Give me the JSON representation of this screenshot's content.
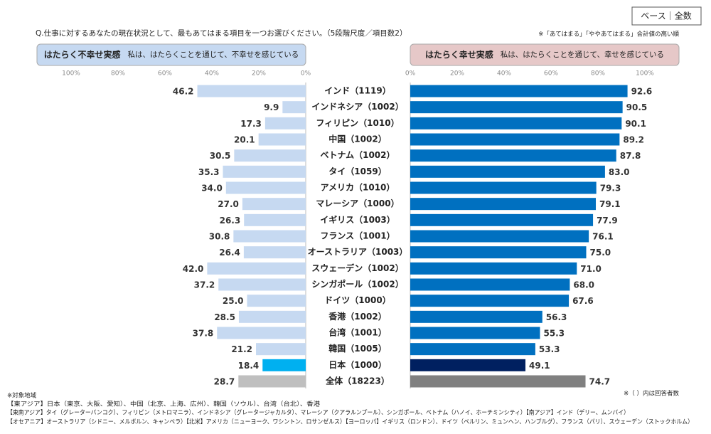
{
  "chart_data": {
    "type": "butterfly",
    "base_label": "ベース｜全数",
    "question": "Q.仕事に対するあなたの現在状況として、最もあてはまる項目を一つお選びください。（5段階尺度／項目数2）",
    "note": "※「あてはまる」「ややあてはまる」合計値の高い順",
    "categories": [
      "インド（1119）",
      "インドネシア（1002）",
      "フィリピン（1010）",
      "中国（1002）",
      "ベトナム（1002）",
      "タイ（1059）",
      "アメリカ（1010）",
      "マレーシア（1000）",
      "イギリス（1003）",
      "フランス（1001）",
      "オーストラリア（1003）",
      "スウェーデン（1002）",
      "シンガポール（1002）",
      "ドイツ（1000）",
      "香港（1002）",
      "台湾（1001）",
      "韓国（1005）",
      "日本（1000）",
      "全体（18223）"
    ],
    "series": [
      {
        "name": "はたらく不幸せ実感",
        "subtitle": "私は、はたらくことを通じて、不幸せを感じている",
        "header_color": "#c6d9f1",
        "color": "#c6d9f1",
        "colors": [
          "#c6d9f1",
          "#c6d9f1",
          "#c6d9f1",
          "#c6d9f1",
          "#c6d9f1",
          "#c6d9f1",
          "#c6d9f1",
          "#c6d9f1",
          "#c6d9f1",
          "#c6d9f1",
          "#c6d9f1",
          "#c6d9f1",
          "#c6d9f1",
          "#c6d9f1",
          "#c6d9f1",
          "#c6d9f1",
          "#c6d9f1",
          "#00b0f0",
          "#bfbfbf"
        ],
        "values": [
          46.2,
          9.9,
          17.3,
          20.1,
          30.5,
          35.3,
          34.0,
          27.0,
          26.3,
          30.8,
          26.4,
          42.0,
          37.2,
          25.0,
          28.5,
          37.8,
          21.2,
          18.4,
          28.7
        ],
        "value_labels": [
          "46.2",
          "9.9",
          "17.3",
          "20.1",
          "30.5",
          "35.3",
          "34.0",
          "27.0",
          "26.3",
          "30.8",
          "26.4",
          "42.0",
          "37.2",
          "25.0",
          "28.5",
          "37.8",
          "21.2",
          "18.4",
          "28.7"
        ],
        "xlim": [
          100,
          0
        ],
        "xticks": [
          {
            "value": 100,
            "label": "100%"
          },
          {
            "value": 80,
            "label": "80%"
          },
          {
            "value": 60,
            "label": "60%"
          },
          {
            "value": 40,
            "label": "40%"
          },
          {
            "value": 20,
            "label": "20%"
          },
          {
            "value": 0,
            "label": "0%"
          }
        ]
      },
      {
        "name": "はたらく幸せ実感",
        "subtitle": "私は、はたらくことを通じて、幸せを感じている",
        "header_color": "#e6c8c8",
        "color": "#0070c0",
        "colors": [
          "#0070c0",
          "#0070c0",
          "#0070c0",
          "#0070c0",
          "#0070c0",
          "#0070c0",
          "#0070c0",
          "#0070c0",
          "#0070c0",
          "#0070c0",
          "#0070c0",
          "#0070c0",
          "#0070c0",
          "#0070c0",
          "#0070c0",
          "#0070c0",
          "#0070c0",
          "#002060",
          "#808080"
        ],
        "values": [
          92.6,
          90.5,
          90.1,
          89.2,
          87.8,
          83.0,
          79.3,
          79.1,
          77.9,
          76.1,
          75.0,
          71.0,
          68.0,
          67.6,
          56.3,
          55.3,
          53.3,
          49.1,
          74.7
        ],
        "value_labels": [
          "92.6",
          "90.5",
          "90.1",
          "89.2",
          "87.8",
          "83.0",
          "79.3",
          "79.1",
          "77.9",
          "76.1",
          "75.0",
          "71.0",
          "68.0",
          "67.6",
          "56.3",
          "55.3",
          "53.3",
          "49.1",
          "74.7"
        ],
        "xlim": [
          0,
          100
        ],
        "xticks": [
          {
            "value": 0,
            "label": "0%"
          },
          {
            "value": 20,
            "label": "20%"
          },
          {
            "value": 40,
            "label": "40%"
          },
          {
            "value": 60,
            "label": "60%"
          },
          {
            "value": 80,
            "label": "80%"
          },
          {
            "value": 100,
            "label": "100%"
          }
        ]
      }
    ],
    "count_note": "※（ ）内は回答者数",
    "footnotes": [
      "※対象地域",
      "【東アジア】日本（東京、大阪、愛知）、中国（北京、上海、広州）、韓国（ソウル）、台湾（台北）、香港",
      "【東南アジア】タイ（グレーターバンコク）、フィリピン（メトロマニラ）、インドネシア（グレータージャカルタ）、マレーシア（クアラルンプール）、シンガポール、ベトナム（ハノイ、ホーチミンシティ）【南アジア】インド（デリー、ムンバイ）",
      "【オセアニア】オーストラリア（シドニー、メルボルン、キャンベラ）【北米】アメリカ（ニューヨーク、ワシントン、ロサンゼルス）【ヨーロッパ】イギリス（ロンドン）、ドイツ（ベルリン、ミュンヘン、ハンブルグ）、フランス（パリ）、スウェーデン（ストックホルム）"
    ]
  }
}
